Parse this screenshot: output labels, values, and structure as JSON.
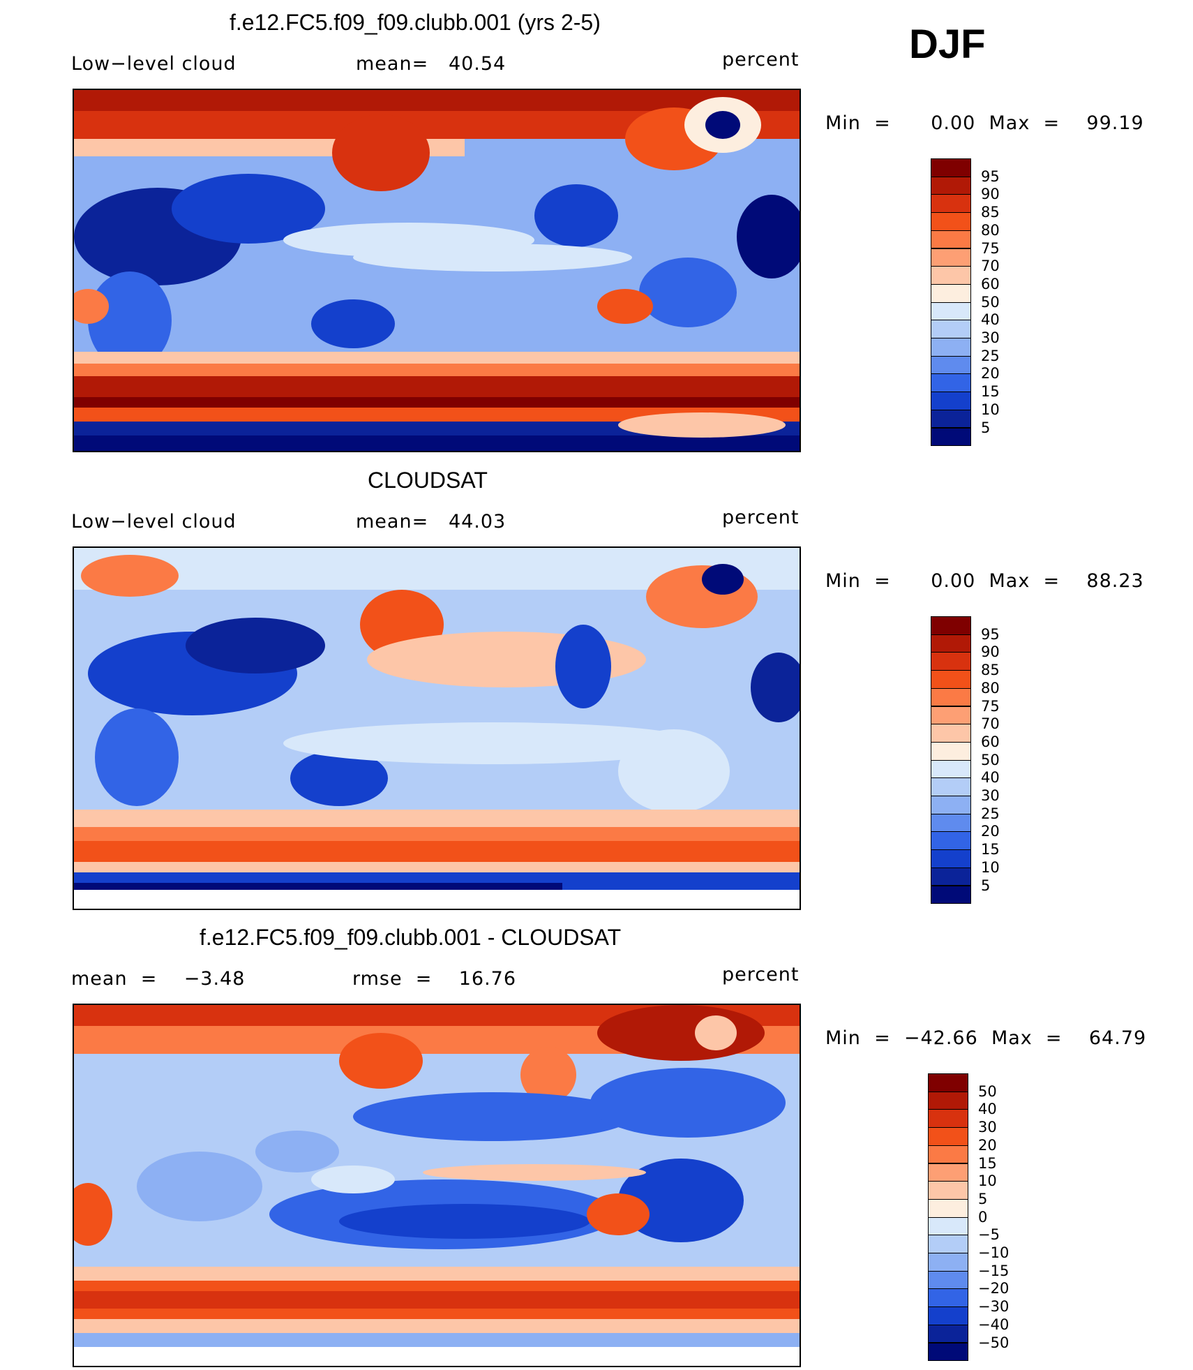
{
  "season": "DJF",
  "panels": [
    {
      "title": "f.e12.FC5.f09_f09.clubb.001 (yrs 2-5)",
      "left_label": "Low−level cloud",
      "center_label": "mean=   40.54",
      "units": "percent",
      "minmax": "Min  =      0.00  Max  =    99.19",
      "chart_data": {
        "type": "heatmap",
        "title": "f.e12.FC5.f09_f09.clubb.001 (yrs 2-5)",
        "variable": "Low-level cloud",
        "units": "percent",
        "mean": 40.54,
        "min": 0.0,
        "max": 99.19,
        "levels": [
          95,
          90,
          85,
          80,
          75,
          70,
          60,
          50,
          40,
          30,
          25,
          20,
          15,
          10,
          5
        ]
      }
    },
    {
      "title": "CLOUDSAT",
      "left_label": "Low−level cloud",
      "center_label": "mean=   44.03",
      "units": "percent",
      "minmax": "Min  =      0.00  Max  =    88.23",
      "chart_data": {
        "type": "heatmap",
        "title": "CLOUDSAT",
        "variable": "Low-level cloud",
        "units": "percent",
        "mean": 44.03,
        "min": 0.0,
        "max": 88.23,
        "levels": [
          95,
          90,
          85,
          80,
          75,
          70,
          60,
          50,
          40,
          30,
          25,
          20,
          15,
          10,
          5
        ]
      }
    },
    {
      "title": "f.e12.FC5.f09_f09.clubb.001 - CLOUDSAT",
      "left_label": "mean  =    −3.48",
      "center_label": "rmse  =    16.76",
      "units": "percent",
      "minmax": "Min  =  −42.66  Max  =    64.79",
      "chart_data": {
        "type": "heatmap",
        "title": "f.e12.FC5.f09_f09.clubb.001 - CLOUDSAT",
        "units": "percent",
        "mean": -3.48,
        "rmse": 16.76,
        "min": -42.66,
        "max": 64.79,
        "levels": [
          "50",
          "40",
          "30",
          "20",
          "15",
          "10",
          "5",
          "0",
          "−5",
          "−10",
          "−15",
          "−20",
          "−30",
          "−40",
          "−50"
        ]
      }
    }
  ],
  "colors": [
    "#7f0000",
    "#b11906",
    "#d8320f",
    "#f25119",
    "#fb7a45",
    "#fd9f74",
    "#fdc6a8",
    "#fdeedf",
    "#d8e8fa",
    "#b3cdf7",
    "#8db0f3",
    "#5f8bee",
    "#3264e6",
    "#1440cc",
    "#0b2399",
    "#000a78"
  ]
}
